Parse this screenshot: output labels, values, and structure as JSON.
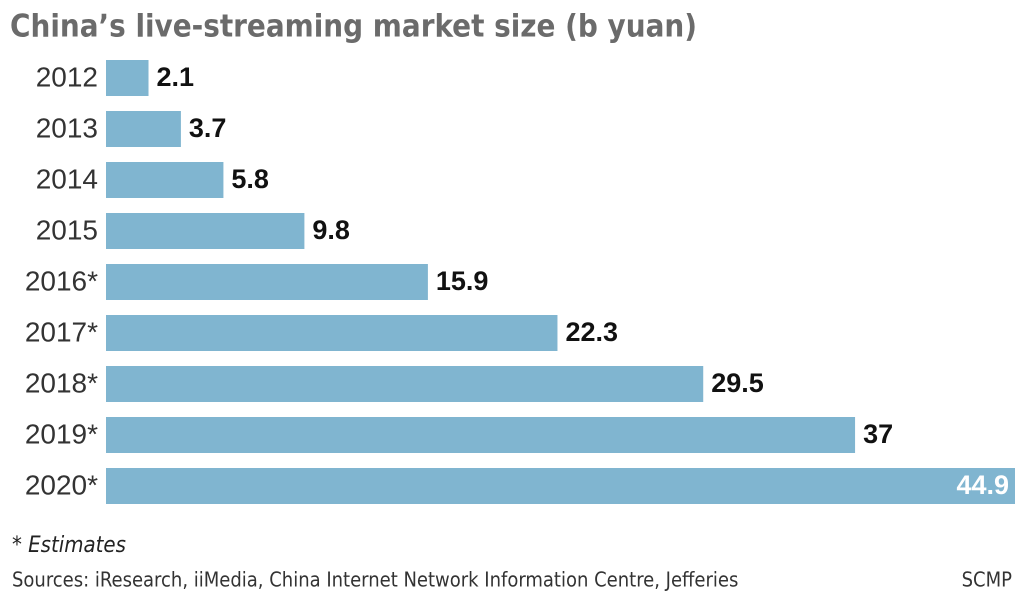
{
  "chart_data": {
    "type": "bar",
    "orientation": "horizontal",
    "title": "China’s live-streaming market size (b yuan)",
    "categories": [
      "2012",
      "2013",
      "2014",
      "2015",
      "2016*",
      "2017*",
      "2018*",
      "2019*",
      "2020*"
    ],
    "values": [
      2.1,
      3.7,
      5.8,
      9.8,
      15.9,
      22.3,
      29.5,
      37,
      44.9
    ],
    "color": "#80b5d0",
    "note": "* Estimates",
    "source": "Sources: iResearch, iiMedia, China Internet Network Information Centre, Jefferies",
    "credit": "SCMP"
  }
}
